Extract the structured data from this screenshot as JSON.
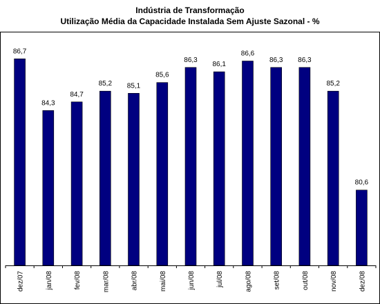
{
  "chart_data": {
    "type": "bar",
    "title": "Indústria de Transformação",
    "subtitle": "Utilização Média da Capacidade Instalada Sem Ajuste Sazonal - %",
    "categories": [
      "dez/07",
      "jan/08",
      "fev/08",
      "mar/08",
      "abr/08",
      "mai/08",
      "jun/08",
      "jul/08",
      "ago/08",
      "set/08",
      "out/08",
      "nov/08",
      "dez/08"
    ],
    "values": [
      86.7,
      84.3,
      84.7,
      85.2,
      85.1,
      85.6,
      86.3,
      86.1,
      86.6,
      86.3,
      86.3,
      85.2,
      80.6
    ],
    "value_labels": [
      "86,7",
      "84,3",
      "84,7",
      "85,2",
      "85,1",
      "85,6",
      "86,3",
      "86,1",
      "86,6",
      "86,3",
      "86,3",
      "85,2",
      "80,6"
    ],
    "ylim": [
      77.1,
      87.8
    ],
    "xlabel": "",
    "ylabel": "",
    "grid": false,
    "legend": "none",
    "bar_color": "#000080"
  }
}
